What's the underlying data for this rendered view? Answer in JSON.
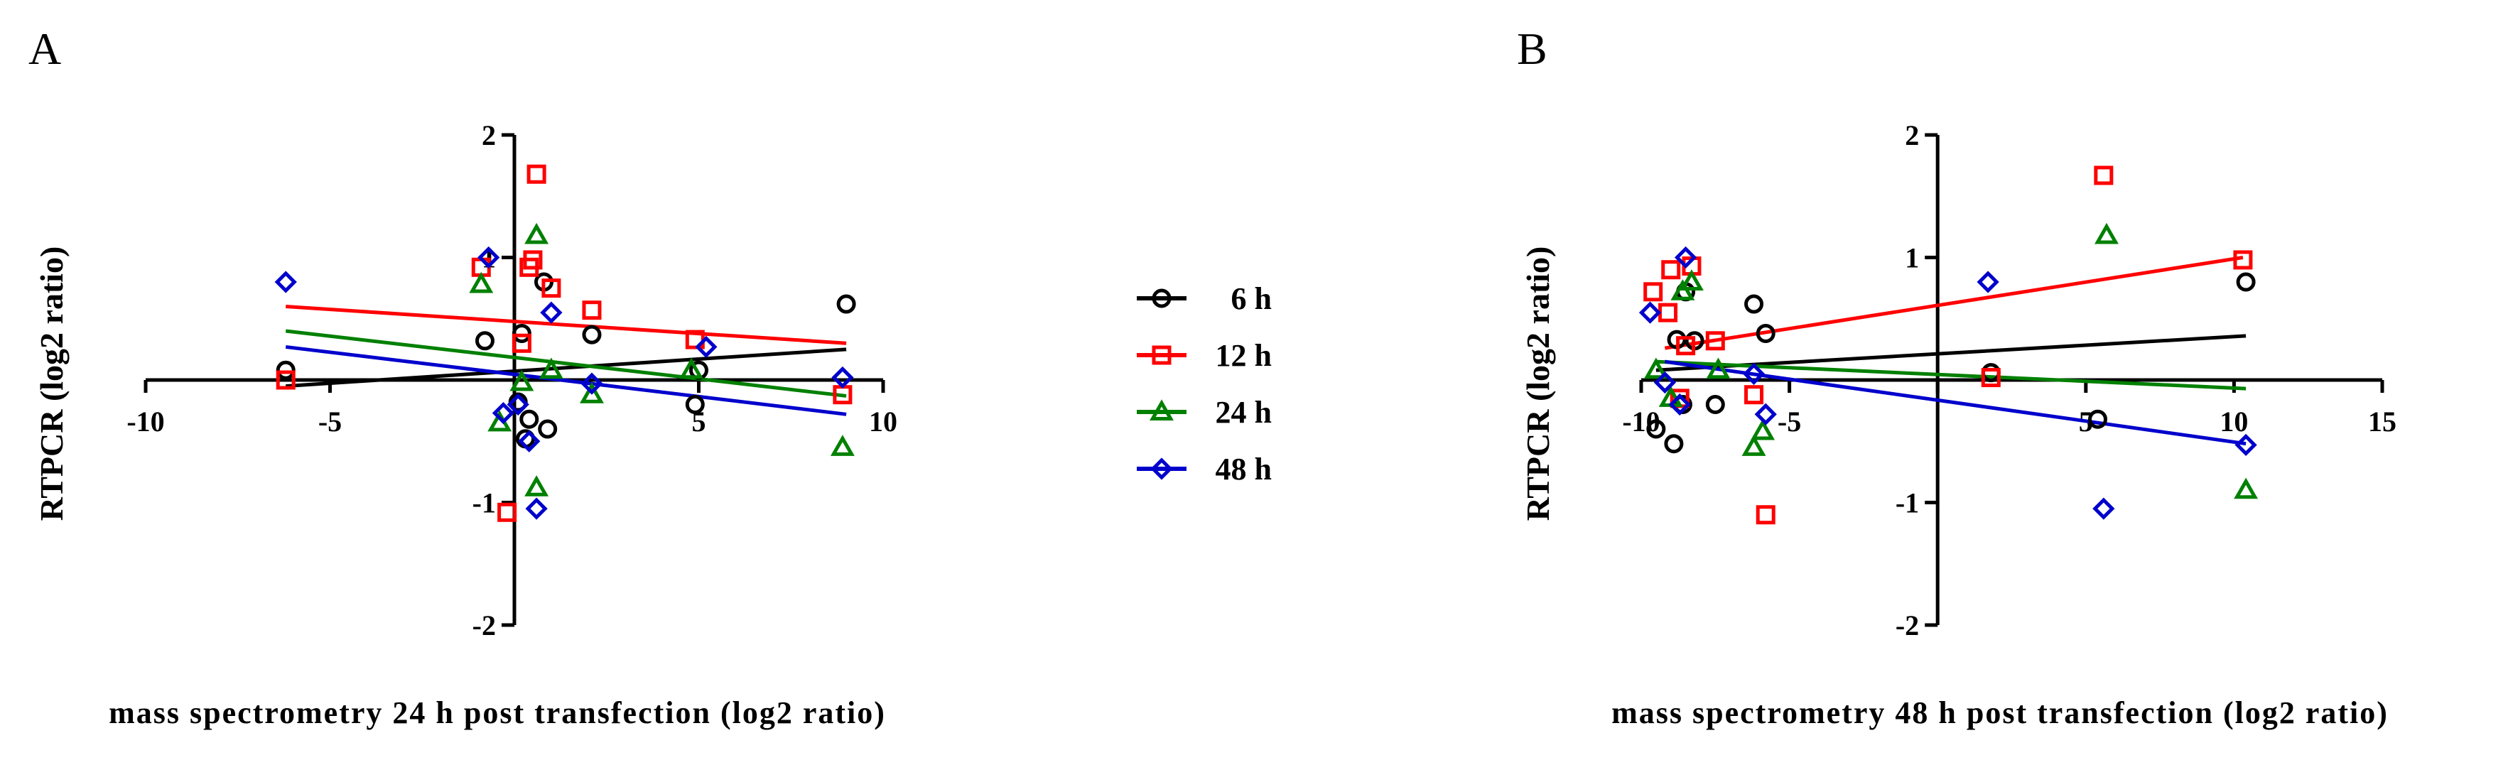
{
  "colors": {
    "6 h": "#000000",
    "12 h": "#ff0000",
    "24 h": "#008000",
    "48 h": "#0000cc"
  },
  "legend": {
    "items": [
      {
        "label": "6 h",
        "marker": "circle",
        "color": "#000000"
      },
      {
        "label": "12 h",
        "marker": "square",
        "color": "#ff0000"
      },
      {
        "label": "24 h",
        "marker": "triangle",
        "color": "#008000"
      },
      {
        "label": "48 h",
        "marker": "diamond",
        "color": "#0000cc"
      }
    ]
  },
  "chart_data": [
    {
      "type": "scatter",
      "panel": "A",
      "xlabel": "mass spectrometry 24 h post transfection (log2 ratio)",
      "ylabel": "RTPCR (log2 ratio)",
      "xlim": [
        -10,
        10
      ],
      "ylim": [
        -2,
        2
      ],
      "xticks": [
        -10,
        -5,
        0,
        5,
        10
      ],
      "xtick_labels": [
        "-10",
        "-5",
        "",
        "5",
        "10"
      ],
      "yticks": [
        -2,
        -1,
        0,
        1,
        2
      ],
      "ytick_labels": [
        "-2",
        "-1",
        "",
        "1",
        "2"
      ],
      "series": [
        {
          "name": "6 h",
          "marker": "circle",
          "points": [
            [
              -6.2,
              0.08
            ],
            [
              -0.8,
              0.32
            ],
            [
              0.2,
              0.38
            ],
            [
              0.8,
              0.8
            ],
            [
              2.1,
              0.37
            ],
            [
              5.0,
              0.08
            ],
            [
              9.0,
              0.62
            ],
            [
              0.1,
              -0.18
            ],
            [
              0.3,
              -0.48
            ],
            [
              0.4,
              -0.32
            ],
            [
              0.9,
              -0.4
            ],
            [
              4.9,
              -0.2
            ]
          ],
          "fit": [
            [
              -6.2,
              -0.05
            ],
            [
              9.0,
              0.25
            ]
          ]
        },
        {
          "name": "12 h",
          "marker": "square",
          "points": [
            [
              -6.2,
              0.0
            ],
            [
              -0.9,
              0.92
            ],
            [
              0.2,
              0.3
            ],
            [
              0.4,
              0.92
            ],
            [
              0.5,
              0.98
            ],
            [
              0.6,
              1.68
            ],
            [
              1.0,
              0.75
            ],
            [
              2.1,
              0.57
            ],
            [
              4.9,
              0.33
            ],
            [
              8.9,
              -0.12
            ],
            [
              -0.2,
              -1.08
            ]
          ],
          "fit": [
            [
              -6.2,
              0.6
            ],
            [
              9.0,
              0.3
            ]
          ]
        },
        {
          "name": "24 h",
          "marker": "triangle",
          "points": [
            [
              -0.9,
              0.78
            ],
            [
              0.6,
              1.18
            ],
            [
              1.0,
              0.08
            ],
            [
              2.1,
              -0.12
            ],
            [
              4.8,
              0.08
            ],
            [
              -0.4,
              -0.35
            ],
            [
              0.2,
              -0.02
            ],
            [
              0.6,
              -0.88
            ],
            [
              8.9,
              -0.55
            ]
          ],
          "fit": [
            [
              -6.2,
              0.4
            ],
            [
              9.0,
              -0.13
            ]
          ]
        },
        {
          "name": "48 h",
          "marker": "diamond",
          "points": [
            [
              -6.2,
              0.8
            ],
            [
              -0.7,
              1.0
            ],
            [
              1.0,
              0.55
            ],
            [
              2.1,
              -0.03
            ],
            [
              5.2,
              0.27
            ],
            [
              8.9,
              0.02
            ],
            [
              -0.3,
              -0.27
            ],
            [
              0.1,
              -0.2
            ],
            [
              0.4,
              -0.5
            ],
            [
              0.6,
              -1.05
            ]
          ],
          "fit": [
            [
              -6.2,
              0.27
            ],
            [
              9.0,
              -0.28
            ]
          ]
        }
      ]
    },
    {
      "type": "scatter",
      "panel": "B",
      "xlabel": "mass spectrometry 48 h post transfection (log2 ratio)",
      "ylabel": "RTPCR (log2 ratio)",
      "xlim": [
        -10,
        15
      ],
      "ylim": [
        -2,
        2
      ],
      "xticks": [
        -10,
        -5,
        0,
        5,
        10,
        15
      ],
      "xtick_labels": [
        "-10",
        "-5",
        "",
        "5",
        "10",
        "15"
      ],
      "yticks": [
        -2,
        -1,
        0,
        1,
        2
      ],
      "ytick_labels": [
        "-2",
        "-1",
        "",
        "1",
        "2"
      ],
      "series": [
        {
          "name": "6 h",
          "marker": "circle",
          "points": [
            [
              -8.8,
              0.33
            ],
            [
              -8.2,
              0.32
            ],
            [
              -8.5,
              0.72
            ],
            [
              -6.2,
              0.62
            ],
            [
              -5.8,
              0.38
            ],
            [
              1.8,
              0.06
            ],
            [
              10.4,
              0.8
            ],
            [
              -9.5,
              -0.4
            ],
            [
              -8.9,
              -0.52
            ],
            [
              -8.6,
              -0.2
            ],
            [
              -7.5,
              -0.2
            ],
            [
              5.4,
              -0.32
            ]
          ],
          "fit": [
            [
              -9.5,
              0.08
            ],
            [
              10.4,
              0.36
            ]
          ]
        },
        {
          "name": "12 h",
          "marker": "square",
          "points": [
            [
              -9.6,
              0.72
            ],
            [
              -9.0,
              0.9
            ],
            [
              -8.3,
              0.93
            ],
            [
              -9.1,
              0.55
            ],
            [
              -7.5,
              0.32
            ],
            [
              -6.2,
              -0.12
            ],
            [
              -5.8,
              -1.1
            ],
            [
              -8.7,
              -0.15
            ],
            [
              -8.5,
              0.28
            ],
            [
              1.8,
              0.02
            ],
            [
              5.6,
              1.67
            ],
            [
              10.3,
              0.98
            ]
          ],
          "fit": [
            [
              -9.2,
              0.26
            ],
            [
              10.3,
              1.0
            ]
          ]
        },
        {
          "name": "24 h",
          "marker": "triangle",
          "points": [
            [
              -9.5,
              0.08
            ],
            [
              -9.0,
              -0.15
            ],
            [
              -8.6,
              0.72
            ],
            [
              -8.3,
              0.8
            ],
            [
              -7.4,
              0.08
            ],
            [
              -6.2,
              -0.55
            ],
            [
              -5.9,
              -0.42
            ],
            [
              5.7,
              1.18
            ],
            [
              10.4,
              -0.9
            ]
          ],
          "fit": [
            [
              -9.5,
              0.15
            ],
            [
              10.4,
              -0.07
            ]
          ]
        },
        {
          "name": "48 h",
          "marker": "diamond",
          "points": [
            [
              -9.7,
              0.55
            ],
            [
              -9.2,
              -0.02
            ],
            [
              -8.5,
              1.0
            ],
            [
              -8.7,
              -0.2
            ],
            [
              -6.2,
              0.05
            ],
            [
              -5.8,
              -0.28
            ],
            [
              1.7,
              0.8
            ],
            [
              5.6,
              -1.05
            ],
            [
              10.4,
              -0.53
            ]
          ],
          "fit": [
            [
              -9.2,
              0.15
            ],
            [
              10.4,
              -0.52
            ]
          ]
        }
      ]
    }
  ],
  "panels": [
    {
      "label": "A"
    },
    {
      "label": "B"
    }
  ]
}
